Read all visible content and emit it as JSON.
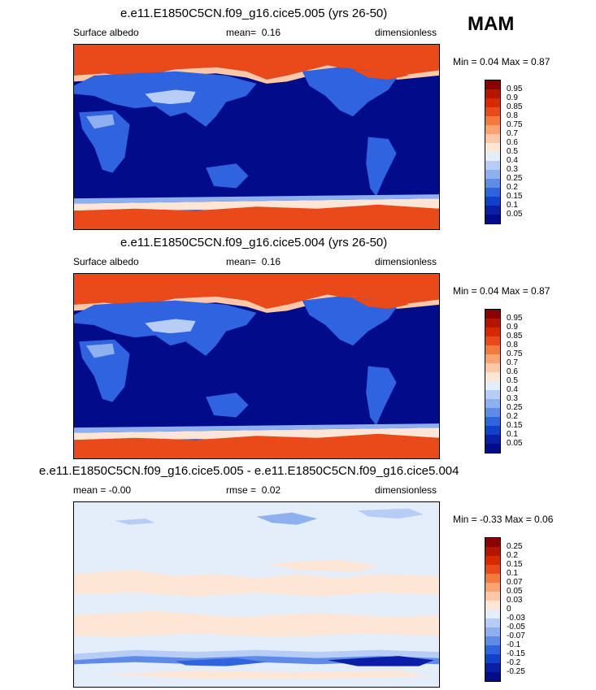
{
  "season": "MAM",
  "panels": [
    {
      "title": "e.e11.E1850C5CN.f09_g16.cice5.005 (yrs 26-50)",
      "left": "Surface albedo",
      "mid_label": "mean=",
      "mid_value": "0.16",
      "right": "dimensionless",
      "minmax": "Min =   0.04 Max =   0.87",
      "colorbar": {
        "labels": [
          "0.95",
          "0.9",
          "0.85",
          "0.8",
          "0.75",
          "0.7",
          "0.6",
          "0.5",
          "0.4",
          "0.3",
          "0.25",
          "0.2",
          "0.15",
          "0.1",
          "0.05"
        ],
        "colors": [
          "#8b0000",
          "#b51400",
          "#d72800",
          "#ea4a1a",
          "#f5783e",
          "#fba273",
          "#fdc8a8",
          "#fde6d6",
          "#e4eefb",
          "#b8cdf5",
          "#8fb0ef",
          "#5f8be8",
          "#2f63df",
          "#1140cc",
          "#0a1ea8",
          "#020b8a"
        ]
      }
    },
    {
      "title": "e.e11.E1850C5CN.f09_g16.cice5.004 (yrs 26-50)",
      "left": "Surface albedo",
      "mid_label": "mean=",
      "mid_value": "0.16",
      "right": "dimensionless",
      "minmax": "Min =   0.04 Max =   0.87",
      "colorbar": {
        "labels": [
          "0.95",
          "0.9",
          "0.85",
          "0.8",
          "0.75",
          "0.7",
          "0.6",
          "0.5",
          "0.4",
          "0.3",
          "0.25",
          "0.2",
          "0.15",
          "0.1",
          "0.05"
        ],
        "colors": [
          "#8b0000",
          "#b51400",
          "#d72800",
          "#ea4a1a",
          "#f5783e",
          "#fba273",
          "#fdc8a8",
          "#fde6d6",
          "#e4eefb",
          "#b8cdf5",
          "#8fb0ef",
          "#5f8be8",
          "#2f63df",
          "#1140cc",
          "#0a1ea8",
          "#020b8a"
        ]
      }
    },
    {
      "title": "e.e11.E1850C5CN.f09_g16.cice5.005 - e.e11.E1850C5CN.f09_g16.cice5.004",
      "left": "mean =  -0.00",
      "mid_label": "rmse =",
      "mid_value": "0.02",
      "right": "dimensionless",
      "minmax": "Min =  -0.33 Max =   0.06",
      "colorbar": {
        "labels": [
          "0.25",
          "0.2",
          "0.15",
          "0.1",
          "0.07",
          "0.05",
          "0.03",
          "0",
          "-0.03",
          "-0.05",
          "-0.07",
          "-0.1",
          "-0.15",
          "-0.2",
          "-0.25"
        ],
        "colors": [
          "#8b0000",
          "#b51400",
          "#d72800",
          "#ea4a1a",
          "#f5783e",
          "#fba273",
          "#fdc8a8",
          "#fde6d6",
          "#e4eefb",
          "#b8cdf5",
          "#8fb0ef",
          "#5f8be8",
          "#2f63df",
          "#1140cc",
          "#0a1ea8",
          "#020b8a"
        ]
      }
    }
  ]
}
